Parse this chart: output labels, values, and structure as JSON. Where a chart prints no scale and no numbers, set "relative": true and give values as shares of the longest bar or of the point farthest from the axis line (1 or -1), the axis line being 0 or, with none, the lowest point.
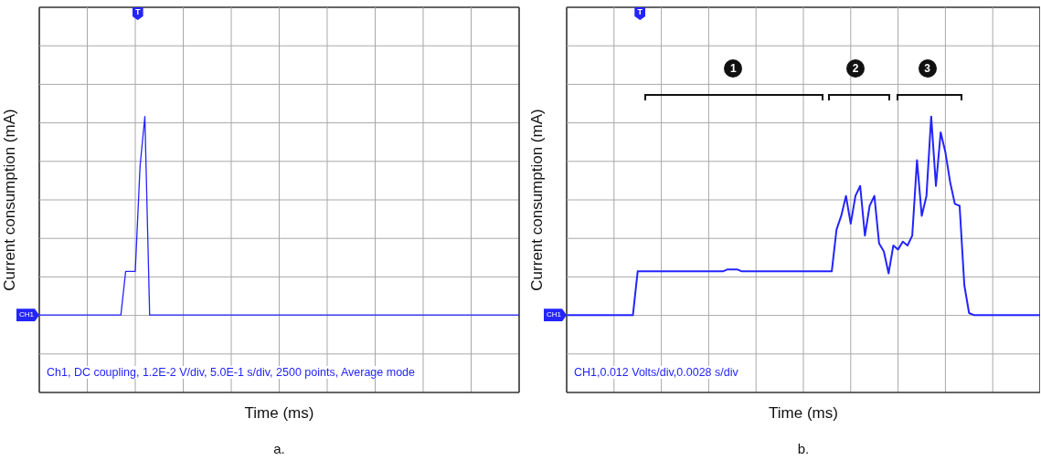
{
  "chart_data": [
    {
      "type": "line",
      "relative": true,
      "grid": true,
      "xlabel": "Time (ms)",
      "ylabel": "Current consumption (mA)",
      "annotations": [
        "Ch1, DC coupling, 1.2E-2 V/div, 5.0E-1 s/div, 2500 points, Average mode",
        "a.",
        "CH1",
        "T"
      ],
      "categories": [
        null,
        null,
        null,
        null,
        null,
        null,
        null,
        null,
        null,
        null,
        null,
        null,
        null,
        null,
        null,
        null,
        null,
        null,
        null,
        null,
        null,
        null,
        null,
        null,
        null,
        null,
        null,
        null,
        null,
        null,
        null,
        null,
        null,
        null,
        null,
        null,
        null,
        null,
        null,
        null,
        null,
        null,
        null,
        null,
        null,
        null,
        null,
        null,
        null,
        null,
        null,
        null,
        null,
        null,
        null,
        null,
        null,
        null,
        null,
        null,
        null,
        null,
        null,
        null,
        null,
        null,
        null,
        null,
        null,
        null,
        null,
        null,
        null,
        null,
        null,
        null,
        null,
        null,
        null,
        null,
        null,
        null,
        null,
        null,
        null,
        null,
        null,
        null,
        null,
        null,
        null,
        null,
        null,
        null,
        null,
        null,
        null,
        null,
        null,
        null,
        null
      ],
      "series": [
        {
          "color": "#2424ff",
          "values": [
            0,
            0,
            0,
            0,
            0,
            0,
            0,
            0,
            0,
            0,
            0,
            0,
            0,
            0,
            0,
            0,
            0,
            0,
            0.22,
            0.22,
            0.22,
            0.75,
            1,
            0,
            0,
            0,
            0,
            0,
            0,
            0,
            0,
            0,
            0,
            0,
            0,
            0,
            0,
            0,
            0,
            0,
            0,
            0,
            0,
            0,
            0,
            0,
            0,
            0,
            0,
            0,
            0,
            0,
            0,
            0,
            0,
            0,
            0,
            0,
            0,
            0,
            0,
            0,
            0,
            0,
            0,
            0,
            0,
            0,
            0,
            0,
            0,
            0,
            0,
            0,
            0,
            0,
            0,
            0,
            0,
            0,
            0,
            0,
            0,
            0,
            0,
            0,
            0,
            0,
            0,
            0,
            0,
            0,
            0,
            0,
            0,
            0,
            0,
            0,
            0,
            0,
            0
          ]
        }
      ]
    },
    {
      "type": "line",
      "relative": true,
      "grid": true,
      "xlabel": "Time (ms)",
      "ylabel": "Current consumption (mA)",
      "annotations": [
        "CH1,0.012 Volts/div,0.0028 s/div",
        "b.",
        "CH1",
        "T",
        "1",
        "2",
        "3"
      ],
      "categories": [
        null,
        null,
        null,
        null,
        null,
        null,
        null,
        null,
        null,
        null,
        null,
        null,
        null,
        null,
        null,
        null,
        null,
        null,
        null,
        null,
        null,
        null,
        null,
        null,
        null,
        null,
        null,
        null,
        null,
        null,
        null,
        null,
        null,
        null,
        null,
        null,
        null,
        null,
        null,
        null,
        null,
        null,
        null,
        null,
        null,
        null,
        null,
        null,
        null,
        null,
        null,
        null,
        null,
        null,
        null,
        null,
        null,
        null,
        null,
        null,
        null,
        null,
        null,
        null,
        null,
        null,
        null,
        null,
        null,
        null,
        null,
        null,
        null,
        null,
        null,
        null,
        null,
        null,
        null,
        null,
        null,
        null,
        null,
        null,
        null,
        null,
        null,
        null,
        null,
        null,
        null,
        null,
        null,
        null,
        null,
        null,
        null,
        null,
        null,
        null,
        null
      ],
      "series": [
        {
          "color": "#2424ff",
          "values": [
            0,
            0,
            0,
            0,
            0,
            0,
            0,
            0,
            0,
            0,
            0,
            0,
            0,
            0,
            0,
            0.22,
            0.22,
            0.22,
            0.22,
            0.22,
            0.22,
            0.22,
            0.22,
            0.22,
            0.22,
            0.22,
            0.22,
            0.22,
            0.22,
            0.22,
            0.22,
            0.22,
            0.22,
            0.22,
            0.23,
            0.23,
            0.23,
            0.22,
            0.22,
            0.22,
            0.22,
            0.22,
            0.22,
            0.22,
            0.22,
            0.22,
            0.22,
            0.22,
            0.22,
            0.22,
            0.22,
            0.22,
            0.22,
            0.22,
            0.22,
            0.22,
            0.22,
            0.43,
            0.5,
            0.6,
            0.46,
            0.6,
            0.65,
            0.4,
            0.55,
            0.6,
            0.36,
            0.32,
            0.21,
            0.35,
            0.33,
            0.37,
            0.35,
            0.4,
            0.78,
            0.5,
            0.6,
            1,
            0.65,
            0.92,
            0.82,
            0.67,
            0.56,
            0.55,
            0.15,
            0.01,
            0,
            0,
            0,
            0,
            0,
            0,
            0,
            0,
            0,
            0,
            0,
            0,
            0,
            0,
            0
          ]
        }
      ]
    }
  ]
}
